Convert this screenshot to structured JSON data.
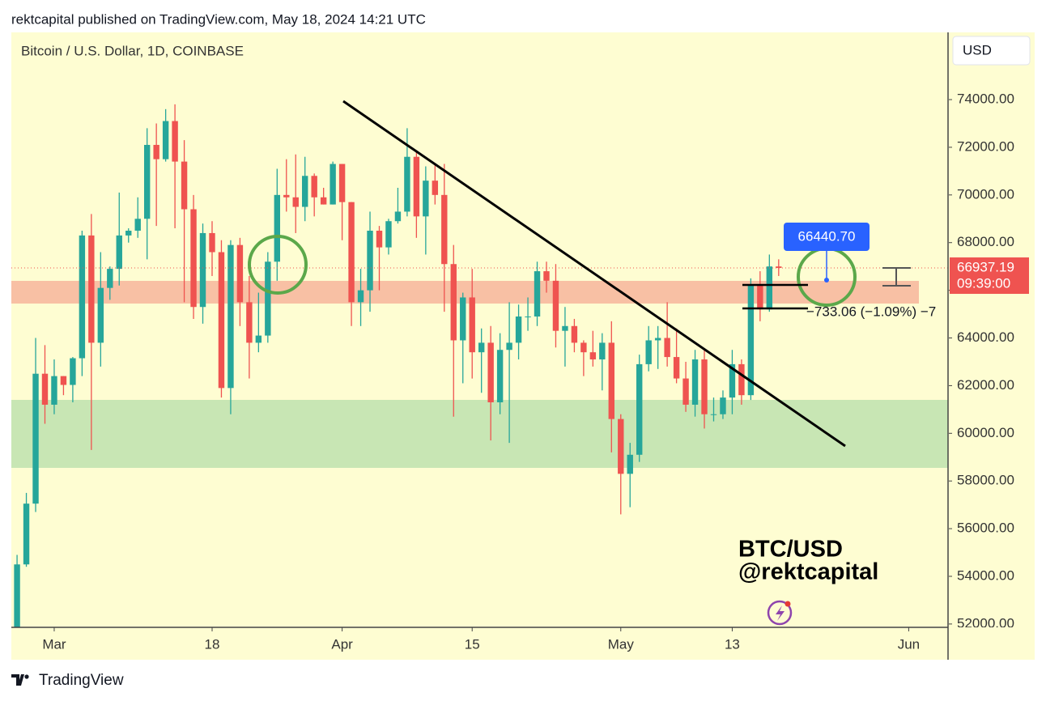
{
  "header": "rektcapital published on TradingView.com, May 18, 2024 14:21 UTC",
  "footer": "TradingView",
  "chart_data": {
    "type": "candlestick",
    "title": "Bitcoin / U.S. Dollar, 1D, COINBASE",
    "currency": "USD",
    "x": [
      "2024-02-26",
      "2024-02-27",
      "2024-02-28",
      "2024-02-29",
      "2024-03-01",
      "2024-03-02",
      "2024-03-03",
      "2024-03-04",
      "2024-03-05",
      "2024-03-06",
      "2024-03-07",
      "2024-03-08",
      "2024-03-09",
      "2024-03-10",
      "2024-03-11",
      "2024-03-12",
      "2024-03-13",
      "2024-03-14",
      "2024-03-15",
      "2024-03-16",
      "2024-03-17",
      "2024-03-18",
      "2024-03-19",
      "2024-03-20",
      "2024-03-21",
      "2024-03-22",
      "2024-03-23",
      "2024-03-24",
      "2024-03-25",
      "2024-03-26",
      "2024-03-27",
      "2024-03-28",
      "2024-03-29",
      "2024-03-30",
      "2024-03-31",
      "2024-04-01",
      "2024-04-02",
      "2024-04-03",
      "2024-04-04",
      "2024-04-05",
      "2024-04-06",
      "2024-04-07",
      "2024-04-08",
      "2024-04-09",
      "2024-04-10",
      "2024-04-11",
      "2024-04-12",
      "2024-04-13",
      "2024-04-14",
      "2024-04-15",
      "2024-04-16",
      "2024-04-17",
      "2024-04-18",
      "2024-04-19",
      "2024-04-20",
      "2024-04-21",
      "2024-04-22",
      "2024-04-23",
      "2024-04-24",
      "2024-04-25",
      "2024-04-26",
      "2024-04-27",
      "2024-04-28",
      "2024-04-29",
      "2024-04-30",
      "2024-05-01",
      "2024-05-02",
      "2024-05-03",
      "2024-05-04",
      "2024-05-05",
      "2024-05-06",
      "2024-05-07",
      "2024-05-08",
      "2024-05-09",
      "2024-05-10",
      "2024-05-11",
      "2024-05-12",
      "2024-05-13",
      "2024-05-14",
      "2024-05-15",
      "2024-05-16",
      "2024-05-17",
      "2024-05-18"
    ],
    "open": [
      51700,
      54500,
      57050,
      62500,
      61200,
      62400,
      62030,
      63150,
      68300,
      63800,
      66100,
      66900,
      68300,
      68500,
      69000,
      72100,
      71500,
      73100,
      71400,
      69400,
      65300,
      68400,
      67600,
      61900,
      67900,
      65500,
      63800,
      64100,
      67200,
      70000,
      69900,
      69500,
      70800,
      69900,
      69600,
      71300,
      69700,
      65500,
      66000,
      68500,
      67800,
      68900,
      69300,
      71600,
      69100,
      70600,
      70000,
      67100,
      63900,
      65700,
      63400,
      63800,
      61300,
      63500,
      63800,
      64900,
      64900,
      66800,
      66400,
      64300,
      64500,
      63800,
      63400,
      63100,
      63800,
      60600,
      58300,
      59100,
      62900,
      63900,
      64000,
      63200,
      62300,
      61200,
      63100,
      60800,
      60800,
      61500,
      62900,
      61600,
      66200,
      65200,
      67000
    ],
    "high": [
      54900,
      57500,
      64000,
      63700,
      63100,
      62400,
      63200,
      68500,
      69200,
      67600,
      67000,
      70100,
      68600,
      69900,
      72800,
      73000,
      73600,
      73800,
      72300,
      70000,
      68800,
      68900,
      68100,
      68100,
      68200,
      66600,
      65900,
      67600,
      71100,
      71500,
      71700,
      71600,
      70900,
      70300,
      71400,
      71300,
      69700,
      66900,
      69300,
      68700,
      69000,
      70300,
      72800,
      71800,
      71200,
      71300,
      71300,
      67900,
      65900,
      66900,
      64400,
      64500,
      64200,
      65500,
      65400,
      65700,
      67200,
      67200,
      67100,
      65300,
      64800,
      63900,
      64300,
      64200,
      64700,
      60800,
      59600,
      63300,
      64500,
      64500,
      65500,
      64400,
      63000,
      63500,
      63500,
      61500,
      61800,
      63500,
      63100,
      66500,
      66800,
      67500,
      67300
    ],
    "low": [
      50900,
      54400,
      56700,
      60400,
      60800,
      61600,
      61300,
      62400,
      59300,
      62800,
      65600,
      66200,
      68000,
      68200,
      67300,
      68700,
      71400,
      68600,
      65500,
      64800,
      64600,
      66600,
      61500,
      60800,
      64500,
      62300,
      63400,
      63800,
      66400,
      69300,
      68400,
      68900,
      69100,
      69600,
      69600,
      68100,
      64500,
      64500,
      65100,
      66000,
      67500,
      68800,
      69100,
      68200,
      67500,
      69600,
      65100,
      60700,
      62100,
      62300,
      61700,
      59700,
      60800,
      59600,
      63100,
      64300,
      64500,
      65900,
      63600,
      62800,
      63400,
      62400,
      62800,
      61800,
      59200,
      56600,
      56900,
      58800,
      62600,
      62700,
      62800,
      62100,
      60900,
      60700,
      60200,
      60500,
      60600,
      60800,
      61200,
      61400,
      64700,
      65100,
      66600
    ],
    "close": [
      54500,
      57050,
      62500,
      61200,
      62400,
      62030,
      63150,
      68300,
      63800,
      66100,
      66900,
      68300,
      68500,
      69000,
      72100,
      71500,
      73100,
      71400,
      69400,
      65300,
      68400,
      67600,
      61900,
      67900,
      65500,
      63800,
      64100,
      67200,
      70000,
      69900,
      69500,
      70800,
      69900,
      69600,
      71300,
      69700,
      65500,
      66000,
      68500,
      67800,
      68900,
      69300,
      71600,
      69100,
      70600,
      70000,
      67100,
      63900,
      65700,
      63400,
      63800,
      61300,
      63500,
      63800,
      64900,
      64900,
      66800,
      66400,
      64300,
      64500,
      63800,
      63400,
      63100,
      63800,
      60600,
      58300,
      59100,
      62900,
      63900,
      64000,
      63200,
      62300,
      61200,
      63100,
      60800,
      60800,
      61500,
      62900,
      61600,
      66200,
      65200,
      67000,
      66937.19
    ],
    "up_color": "#26a69a",
    "down_color": "#ef5350",
    "xlim": [
      "2024-02-25",
      "2024-06-05"
    ],
    "xticks": [
      {
        "value": "2024-03-01",
        "label": "Mar"
      },
      {
        "value": "2024-03-18",
        "label": "18"
      },
      {
        "value": "2024-04-01",
        "label": "Apr"
      },
      {
        "value": "2024-04-15",
        "label": "15"
      },
      {
        "value": "2024-05-01",
        "label": "May"
      },
      {
        "value": "2024-05-13",
        "label": "13"
      },
      {
        "value": "2024-06-01",
        "label": "Jun"
      }
    ],
    "ylim": [
      51860,
      76820
    ],
    "yticks": [
      {
        "value": 52000,
        "label": "52000.00"
      },
      {
        "value": 54000,
        "label": "54000.00"
      },
      {
        "value": 56000,
        "label": "56000.00"
      },
      {
        "value": 58000,
        "label": "58000.00"
      },
      {
        "value": 60000,
        "label": "60000.00"
      },
      {
        "value": 62000,
        "label": "62000.00"
      },
      {
        "value": 64000,
        "label": "64000.00"
      },
      {
        "value": 66000,
        "label": "66000.00"
      },
      {
        "value": 68000,
        "label": "68000.00"
      },
      {
        "value": 70000,
        "label": "70000.00"
      },
      {
        "value": 72000,
        "label": "72000.00"
      },
      {
        "value": 74000,
        "label": "74000.00"
      }
    ],
    "last_price": 66937.19,
    "countdown": "09:39:00",
    "measure_label": "66440.70",
    "measure_change": "−733.06 (−1.09%) −7",
    "watermark": [
      "BTC/USD",
      "@rektcapital"
    ]
  }
}
